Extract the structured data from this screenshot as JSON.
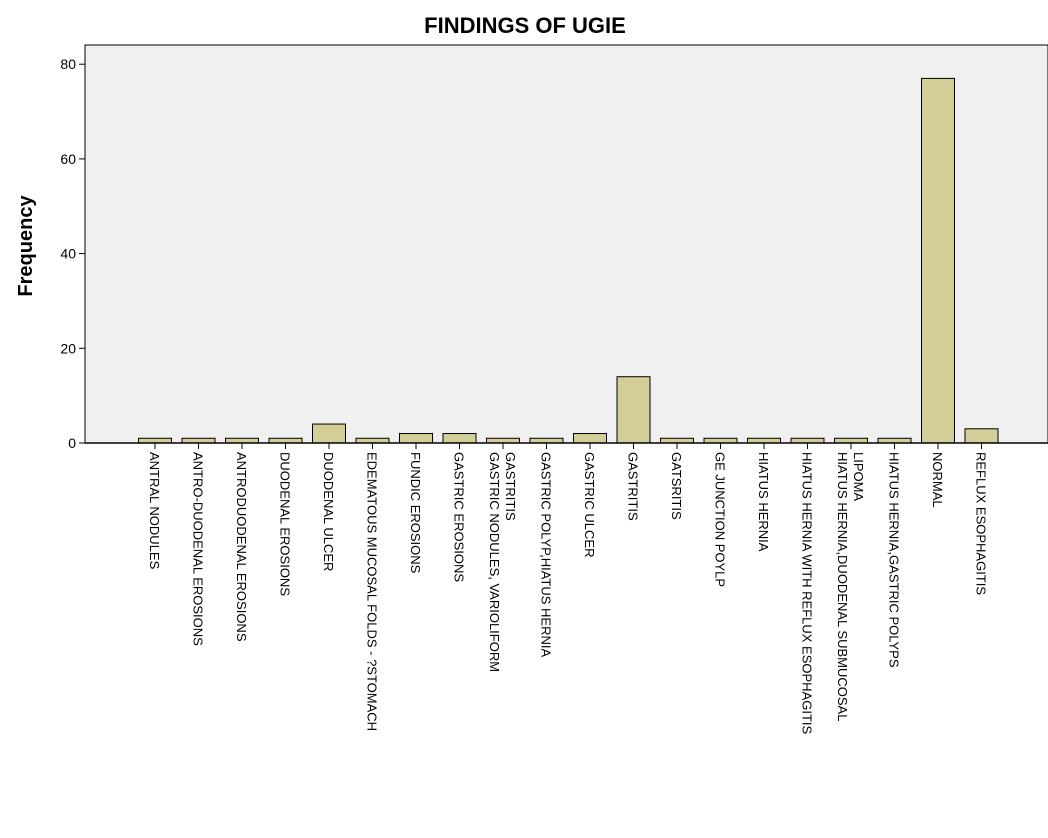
{
  "chart_data": {
    "type": "bar",
    "title": "FINDINGS OF UGIE",
    "xlabel": "",
    "ylabel": "Frequency",
    "ylim": [
      0,
      84
    ],
    "yticks": [
      0,
      20,
      40,
      60,
      80
    ],
    "grid": false,
    "legend": "none",
    "categories": [
      [
        "ANTRAL NODULES"
      ],
      [
        "ANTRO-DUODENAL EROSIONS"
      ],
      [
        "ANTRODUODENAL EROSIONS"
      ],
      [
        "DUODENAL EROSIONS"
      ],
      [
        "DUODENAL ULCER"
      ],
      [
        "EDEMATOUS MUCOSAL FOLDS - ?STOMACH"
      ],
      [
        "FUNDIC EROSIONS"
      ],
      [
        "GASTRIC EROSIONS"
      ],
      [
        "GASTRIC NODULES, VARIOLIFORM",
        "GASTRITIS"
      ],
      [
        "GASTRIC POLYP,HIATUS HERNIA"
      ],
      [
        "GASTRIC ULCER"
      ],
      [
        "GASTRITIS"
      ],
      [
        "GATSRITIS"
      ],
      [
        "GE JUNCTION POYLP"
      ],
      [
        "HIATUS HERNIA"
      ],
      [
        "HIATUS HERNIA WITH REFLUX ESOPHAGITIS"
      ],
      [
        "HIATUS HERNIA,DUODENAL SUBMUCOSAL",
        "LIPOMA"
      ],
      [
        "HIATUS HERNIA,GASTRIC POLYPS"
      ],
      [
        "NORMAL"
      ],
      [
        "REFLUX ESOPHAGITIS"
      ]
    ],
    "values": [
      1,
      1,
      1,
      1,
      4,
      1,
      2,
      2,
      1,
      1,
      2,
      14,
      1,
      1,
      1,
      1,
      1,
      1,
      77,
      3
    ]
  },
  "colors": {
    "plot_background": "#f0f0f0",
    "bar_fill": "#d3ce97",
    "bar_stroke": "#000000",
    "axis": "#000000"
  }
}
